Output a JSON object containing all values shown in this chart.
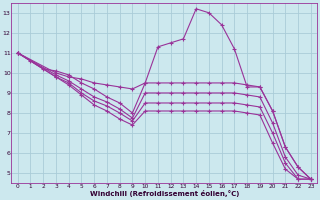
{
  "xlabel": "Windchill (Refroidissement éolien,°C)",
  "background_color": "#cce8ee",
  "line_color": "#993399",
  "grid_color": "#aaccd8",
  "xlim": [
    -0.5,
    23.5
  ],
  "ylim": [
    4.5,
    13.5
  ],
  "xticks": [
    0,
    1,
    2,
    3,
    4,
    5,
    6,
    7,
    8,
    9,
    10,
    11,
    12,
    13,
    14,
    15,
    16,
    17,
    18,
    19,
    20,
    21,
    22,
    23
  ],
  "yticks": [
    5,
    6,
    7,
    8,
    9,
    10,
    11,
    12,
    13
  ],
  "lines": [
    {
      "x": [
        0,
        1,
        2,
        3,
        4,
        5,
        6,
        7,
        8,
        9,
        10,
        11,
        12,
        13,
        14,
        15,
        16,
        17,
        18,
        19,
        20,
        21,
        22,
        23
      ],
      "y": [
        11.0,
        10.6,
        10.2,
        10.1,
        9.9,
        9.5,
        9.2,
        8.8,
        8.5,
        8.0,
        9.5,
        11.3,
        11.5,
        11.7,
        13.2,
        13.0,
        12.4,
        11.2,
        9.3,
        9.3,
        8.1,
        6.3,
        5.3,
        4.7
      ]
    },
    {
      "x": [
        0,
        3,
        4,
        5,
        6,
        7,
        8,
        9,
        10,
        11,
        12,
        13,
        14,
        15,
        16,
        17,
        18,
        19,
        20,
        21,
        22,
        23
      ],
      "y": [
        11.0,
        10.0,
        9.8,
        9.7,
        9.5,
        9.4,
        9.3,
        9.2,
        9.5,
        9.5,
        9.5,
        9.5,
        9.5,
        9.5,
        9.5,
        9.5,
        9.4,
        9.3,
        8.1,
        6.3,
        5.3,
        4.7
      ]
    },
    {
      "x": [
        0,
        3,
        4,
        5,
        6,
        7,
        8,
        9,
        10,
        11,
        12,
        13,
        14,
        15,
        16,
        17,
        18,
        19,
        20,
        21,
        22,
        23
      ],
      "y": [
        11.0,
        9.9,
        9.6,
        9.2,
        8.8,
        8.55,
        8.2,
        7.75,
        9.0,
        9.0,
        9.0,
        9.0,
        9.0,
        9.0,
        9.0,
        9.0,
        8.9,
        8.8,
        7.5,
        5.8,
        4.9,
        4.7
      ]
    },
    {
      "x": [
        0,
        3,
        4,
        5,
        6,
        7,
        8,
        9,
        10,
        11,
        12,
        13,
        14,
        15,
        16,
        17,
        18,
        19,
        20,
        21,
        22,
        23
      ],
      "y": [
        11.0,
        9.8,
        9.5,
        9.0,
        8.6,
        8.35,
        8.0,
        7.6,
        8.5,
        8.5,
        8.5,
        8.5,
        8.5,
        8.5,
        8.5,
        8.5,
        8.4,
        8.3,
        7.0,
        5.5,
        4.7,
        4.7
      ]
    },
    {
      "x": [
        0,
        3,
        4,
        5,
        6,
        7,
        8,
        9,
        10,
        11,
        12,
        13,
        14,
        15,
        16,
        17,
        18,
        19,
        20,
        21,
        22,
        23
      ],
      "y": [
        11.0,
        9.8,
        9.4,
        8.9,
        8.4,
        8.1,
        7.7,
        7.4,
        8.1,
        8.1,
        8.1,
        8.1,
        8.1,
        8.1,
        8.1,
        8.1,
        8.0,
        7.9,
        6.5,
        5.2,
        4.7,
        4.7
      ]
    }
  ]
}
